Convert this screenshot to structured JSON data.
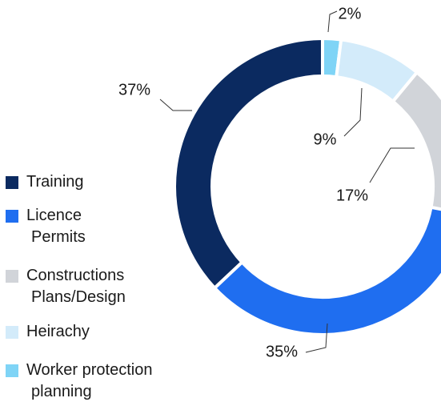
{
  "chart_data": {
    "type": "pie",
    "categories": [
      "Training",
      "Licence\nPermits",
      "Constructions\nPlans/Design",
      "Heirachy",
      "Worker protection\nplanning"
    ],
    "values": [
      37,
      35,
      17,
      9,
      2
    ],
    "value_labels": [
      "37%",
      "35%",
      "17%",
      "9%",
      "2%"
    ],
    "colors": [
      "#0b2a60",
      "#1f6ef0",
      "#d1d4d9",
      "#d3ebfa",
      "#7fd4f6"
    ]
  }
}
